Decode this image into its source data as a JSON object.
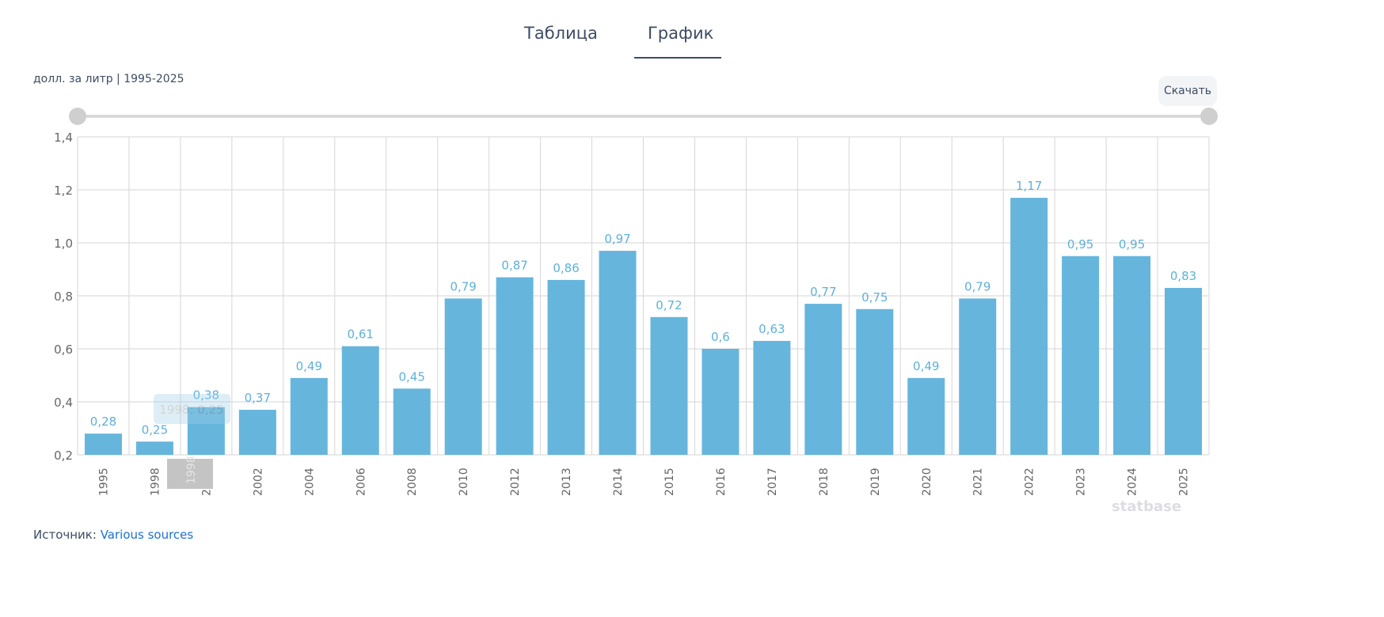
{
  "tabs": [
    {
      "label": "Таблица"
    },
    {
      "label": "График"
    }
  ],
  "unit_label": "долл. за литр | 1995-2025",
  "download_label": "Скачать",
  "source": {
    "label": "Источник:",
    "link": "Various sources"
  },
  "logo": "statbase",
  "tooltip": {
    "text": "1998: 0,25",
    "xlabel": "1998"
  },
  "colors": {
    "bar": "#66b5dc",
    "label": "#5fb0d9"
  },
  "chart_data": {
    "type": "bar",
    "categories": [
      "1995",
      "1998",
      "2000",
      "2002",
      "2004",
      "2006",
      "2008",
      "2010",
      "2012",
      "2013",
      "2014",
      "2015",
      "2016",
      "2017",
      "2018",
      "2019",
      "2020",
      "2021",
      "2022",
      "2023",
      "2024",
      "2025"
    ],
    "values": [
      0.28,
      0.25,
      0.38,
      0.37,
      0.49,
      0.61,
      0.45,
      0.79,
      0.87,
      0.86,
      0.97,
      0.72,
      0.6,
      0.63,
      0.77,
      0.75,
      0.49,
      0.79,
      1.17,
      0.95,
      0.95,
      0.83
    ],
    "ylim": [
      0.2,
      1.4
    ],
    "yticks": [
      0.2,
      0.4,
      0.6,
      0.8,
      1.0,
      1.2,
      1.4
    ],
    "ytick_labels": [
      "0,2",
      "0,4",
      "0,6",
      "0,8",
      "1,0",
      "1,2",
      "1,4"
    ],
    "grid": true,
    "ylabel": "долл. за литр"
  }
}
